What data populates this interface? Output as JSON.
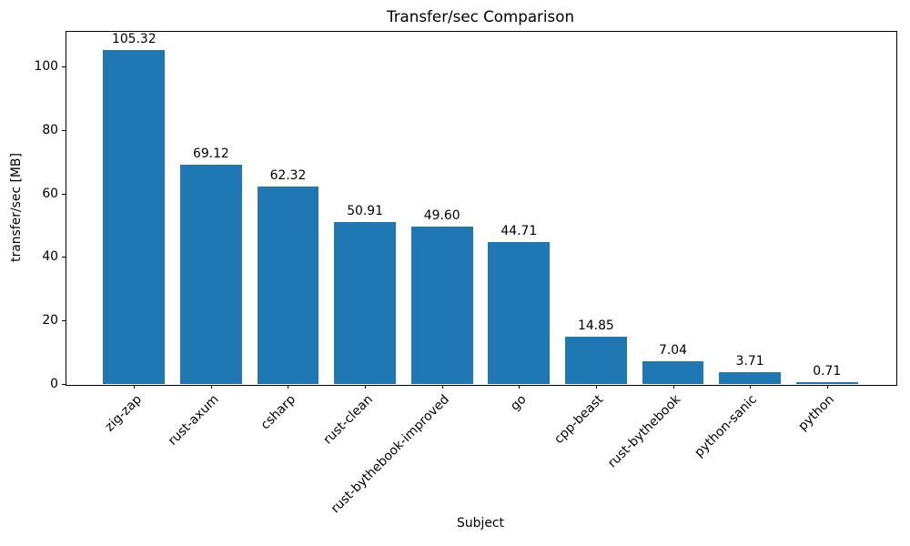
{
  "chart_data": {
    "type": "bar",
    "title": "Transfer/sec Comparison",
    "xlabel": "Subject",
    "ylabel": "transfer/sec [MB]",
    "categories": [
      "zig-zap",
      "rust-axum",
      "csharp",
      "rust-clean",
      "rust-bythebook-improved",
      "go",
      "cpp-beast",
      "rust-bythebook",
      "python-sanic",
      "python"
    ],
    "values": [
      105.32,
      69.12,
      62.32,
      50.91,
      49.6,
      44.71,
      14.85,
      7.04,
      3.71,
      0.71
    ],
    "value_labels": [
      "105.32",
      "69.12",
      "62.32",
      "50.91",
      "49.60",
      "44.71",
      "14.85",
      "7.04",
      "3.71",
      "0.71"
    ],
    "yticks": [
      0,
      20,
      40,
      60,
      80,
      100
    ],
    "ylim": [
      0,
      111.2
    ],
    "bar_color": "#1f77b4",
    "grid": false,
    "legend": "none"
  }
}
